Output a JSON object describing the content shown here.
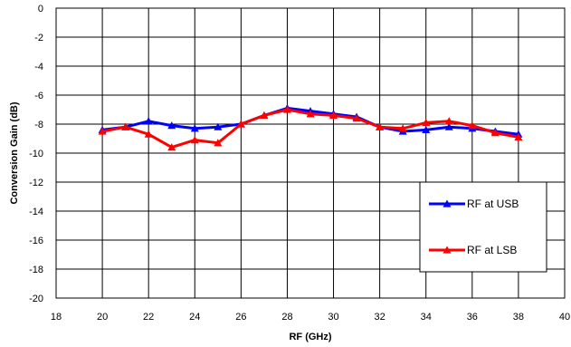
{
  "chart_data": {
    "type": "line",
    "title": "",
    "xlabel": "RF (GHz)",
    "ylabel": "Conversion Gain (dB)",
    "xlim": [
      18,
      40
    ],
    "ylim": [
      -20,
      0
    ],
    "x_ticks": [
      18,
      20,
      22,
      24,
      26,
      28,
      30,
      32,
      34,
      36,
      38,
      40
    ],
    "y_ticks": [
      0,
      -2,
      -4,
      -6,
      -8,
      -10,
      -12,
      -14,
      -16,
      -18,
      -20
    ],
    "grid": true,
    "legend_position": "bottom-right",
    "x": [
      20,
      21,
      22,
      23,
      24,
      25,
      26,
      27,
      28,
      29,
      30,
      31,
      32,
      33,
      34,
      35,
      36,
      37,
      38
    ],
    "series": [
      {
        "name": "RF at USB",
        "color": "#0000ff",
        "marker": "triangle",
        "values": [
          -8.4,
          -8.2,
          -7.8,
          -8.1,
          -8.3,
          -8.2,
          -8.0,
          -7.4,
          -6.9,
          -7.1,
          -7.3,
          -7.5,
          -8.2,
          -8.5,
          -8.4,
          -8.2,
          -8.3,
          -8.5,
          -8.7
        ]
      },
      {
        "name": "RF at LSB",
        "color": "#ff0000",
        "marker": "triangle",
        "values": [
          -8.5,
          -8.2,
          -8.7,
          -9.6,
          -9.1,
          -9.3,
          -8.0,
          -7.4,
          -7.0,
          -7.3,
          -7.4,
          -7.6,
          -8.2,
          -8.3,
          -7.9,
          -7.8,
          -8.1,
          -8.6,
          -8.9
        ]
      }
    ]
  }
}
